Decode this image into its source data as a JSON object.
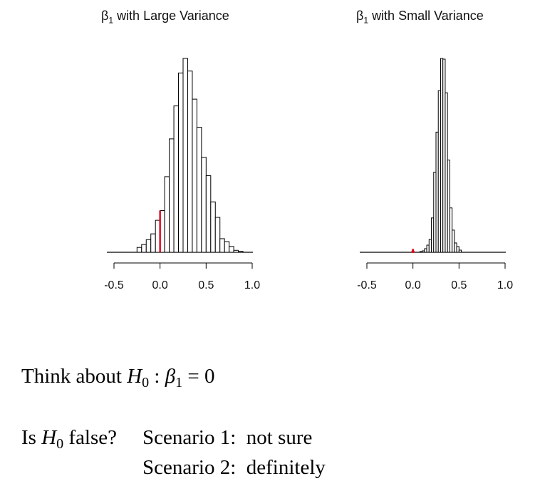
{
  "chart_data": [
    {
      "type": "bar",
      "title_symbol": "β",
      "title_subscript": "1",
      "title_text": "with Large Variance",
      "bin_width": 0.05,
      "bin_starts": [
        -0.25,
        -0.2,
        -0.15,
        -0.1,
        -0.05,
        0.0,
        0.05,
        0.1,
        0.15,
        0.2,
        0.25,
        0.3,
        0.35,
        0.4,
        0.45,
        0.5,
        0.55,
        0.6,
        0.65,
        0.7,
        0.75,
        0.8,
        0.85
      ],
      "counts": [
        5,
        8,
        13,
        19,
        33,
        43,
        78,
        117,
        151,
        185,
        200,
        187,
        158,
        129,
        98,
        79,
        52,
        36,
        14,
        11,
        6,
        2,
        1
      ],
      "xlim": [
        -0.5,
        1.0
      ],
      "xticks": [
        -0.5,
        0.0,
        0.5,
        1.0
      ],
      "xtick_labels": [
        "-0.5",
        "0.0",
        "0.5",
        "1.0"
      ],
      "marker_x": 0.0,
      "marker_height": 43,
      "marker_color": "#e0001b",
      "bar_fill": "#ffffff",
      "bar_stroke": "#000000"
    },
    {
      "type": "bar",
      "title_symbol": "β",
      "title_subscript": "1",
      "title_text": "with Small Variance",
      "bin_width": 0.025,
      "bin_starts": [
        0.075,
        0.1,
        0.125,
        0.15,
        0.175,
        0.2,
        0.225,
        0.25,
        0.275,
        0.3,
        0.325,
        0.35,
        0.375,
        0.4,
        0.425,
        0.45,
        0.475,
        0.5
      ],
      "counts": [
        1,
        2,
        5,
        10,
        18,
        48,
        112,
        168,
        226,
        271,
        270,
        223,
        129,
        62,
        31,
        13,
        8,
        3
      ],
      "xlim": [
        -0.5,
        1.0
      ],
      "xticks": [
        -0.5,
        0.0,
        0.5,
        1.0
      ],
      "xtick_labels": [
        "-0.5",
        "0.0",
        "0.5",
        "1.0"
      ],
      "marker_x": 0.0,
      "marker_height": 0,
      "marker_color": "#e0001b",
      "bar_fill": "#ffffff",
      "bar_stroke": "#000000"
    }
  ],
  "text": {
    "line1_prefix": "Think about",
    "h_symbol": "H",
    "h_sub": "0",
    "beta_symbol": "β",
    "beta_sub": "1",
    "eq_rest": "= 0",
    "question_prefix": "Is",
    "question_suffix": "false?",
    "scenario1": "Scenario 1:  not sure",
    "scenario2": "Scenario 2:  definitely"
  }
}
